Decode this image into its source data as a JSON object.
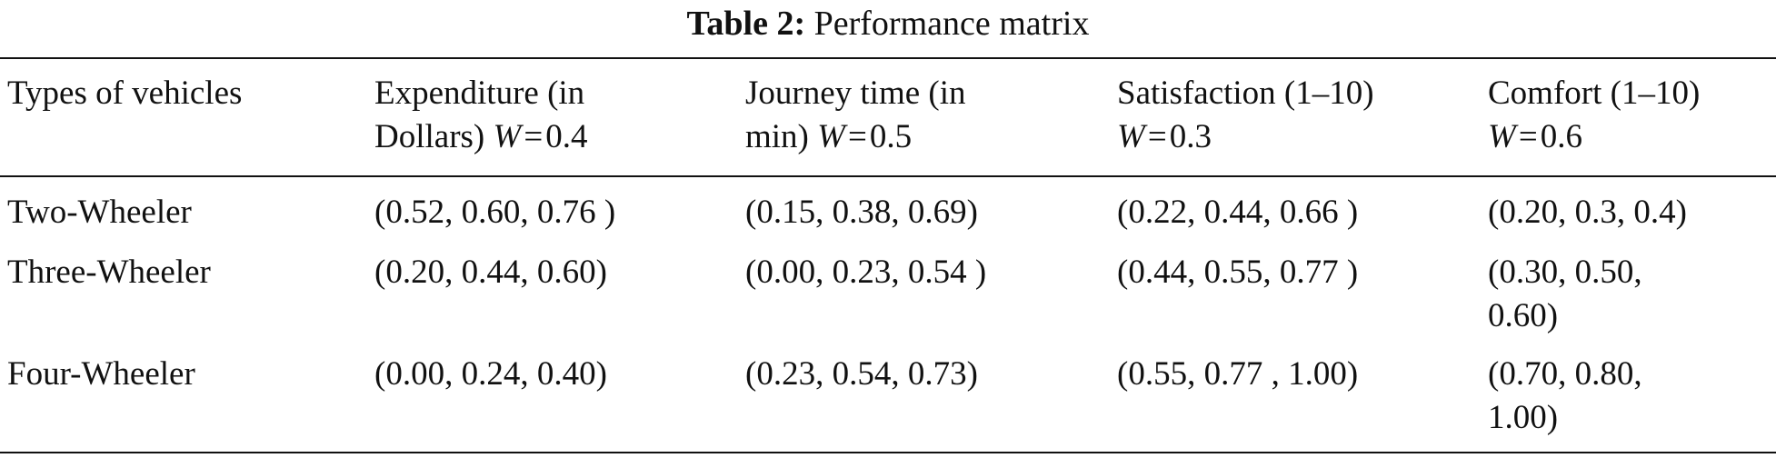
{
  "caption": {
    "label": "Table 2:",
    "title": "Performance matrix"
  },
  "header": {
    "col1": "Types of vehicles",
    "col2_line1": "Expenditure (in",
    "col2_line2": "Dollars)",
    "col2_weight": "0.4",
    "col3_line1": "Journey time (in",
    "col3_line2": "min)",
    "col3_weight": "0.5",
    "col4_line1": "Satisfaction (1–10)",
    "col4_weight": "0.3",
    "col5_line1": "Comfort (1–10)",
    "col5_weight": "0.6",
    "weight_symbol": "W",
    "equals": "="
  },
  "rows": [
    {
      "vehicle": "Two-Wheeler",
      "expenditure": "(0.52, 0.60, 0.76 )",
      "journey_time": "(0.15, 0.38, 0.69)",
      "satisfaction": "(0.22, 0.44, 0.66 )",
      "comfort_line1": "(0.20, 0.3, 0.4)",
      "comfort_line2": ""
    },
    {
      "vehicle": "Three-Wheeler",
      "expenditure": "(0.20, 0.44, 0.60)",
      "journey_time": "(0.00, 0.23, 0.54 )",
      "satisfaction": "(0.44, 0.55, 0.77 )",
      "comfort_line1": "(0.30, 0.50,",
      "comfort_line2": "0.60)"
    },
    {
      "vehicle": "Four-Wheeler",
      "expenditure": "(0.00, 0.24, 0.40)",
      "journey_time": "(0.23, 0.54, 0.73)",
      "satisfaction": "(0.55, 0.77 , 1.00)",
      "comfort_line1": "(0.70, 0.80,",
      "comfort_line2": "1.00)"
    }
  ]
}
